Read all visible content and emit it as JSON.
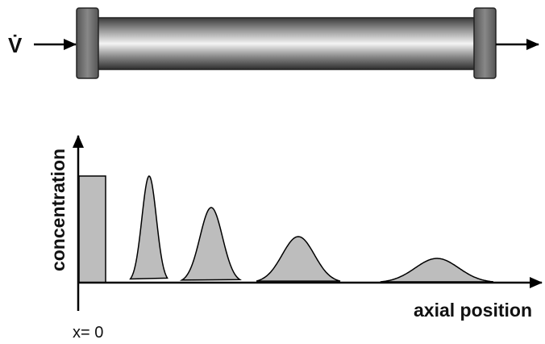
{
  "inlet_label": "V̇",
  "y_axis_label": "concentration",
  "x_axis_label": "axial position",
  "origin_label": "x= 0"
}
